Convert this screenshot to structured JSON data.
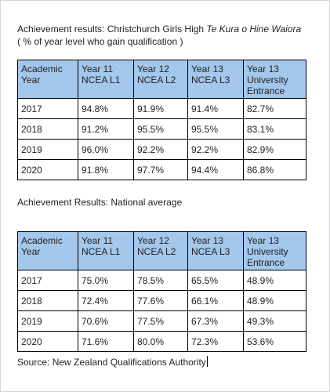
{
  "section1": {
    "title_prefix": "Achievement results: Christchurch Girls High ",
    "title_italic": "Te Kura o Hine Waiora",
    "subtitle": "( % of year level who gain qualification )",
    "headers": [
      "Academic Year",
      "Year 11 NCEA L1",
      "Year 12 NCEA L2",
      "Year 13 NCEA L3",
      "Year 13 University Entrance"
    ],
    "rows": [
      [
        "2017",
        "94.8%",
        "91.9%",
        "91.4%",
        "82.7%"
      ],
      [
        "2018",
        "91.2%",
        "95.5%",
        "95.5%",
        "83.1%"
      ],
      [
        "2019",
        "96.0%",
        "92.2%",
        "92.2%",
        "82.9%"
      ],
      [
        "2020",
        "91.8%",
        "97.7%",
        "94.4%",
        "86.8%"
      ]
    ]
  },
  "section2": {
    "title": "Achievement Results: National average",
    "headers": [
      "Academic Year",
      "Year 11 NCEA L1",
      "Year 12 NCEA L2",
      "Year 13 NCEA L3",
      "Year 13 University Entrance"
    ],
    "rows": [
      [
        "2017",
        "75.0%",
        "78.5%",
        "65.5%",
        "48.9%"
      ],
      [
        "2018",
        "72.4%",
        "77.6%",
        "66.1%",
        "48.9%"
      ],
      [
        "2019",
        "70.6%",
        "77.5%",
        "67.3%",
        "49.3%"
      ],
      [
        "2020",
        "71.6%",
        "80.0%",
        "72.3%",
        "53.6%"
      ]
    ]
  },
  "source": "Source: New Zealand Qualifications Authority",
  "colors": {
    "header_fill": "#a4c7ec",
    "border": "#000000"
  }
}
